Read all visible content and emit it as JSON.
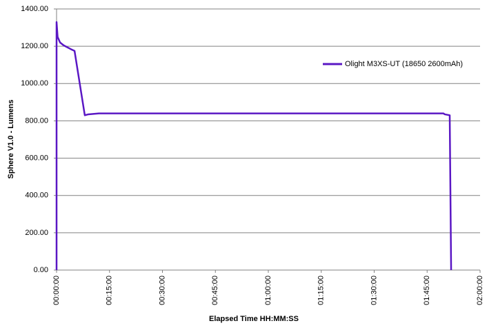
{
  "chart_data": {
    "type": "line",
    "x_label": "Elapsed Time HH:MM:SS",
    "y_label": "Sphere V1.0 - Lumens",
    "x": [
      0,
      0,
      0.3,
      1,
      2,
      3,
      4,
      5.1,
      8,
      9,
      12,
      30,
      60,
      90,
      109.6,
      110,
      111.4,
      111.8
    ],
    "series": [
      {
        "name": "Olight M3XS-UT (18650 2600mAh)",
        "color": "#5a17c4",
        "values": [
          0,
          1330,
          1250,
          1220,
          1205,
          1195,
          1185,
          1175,
          830,
          835,
          840,
          840,
          840,
          840,
          840,
          835,
          830,
          0
        ]
      }
    ],
    "xlim": [
      0,
      120
    ],
    "xticks": [
      {
        "value": 0,
        "label": "00:00:00"
      },
      {
        "value": 15,
        "label": "00:15:00"
      },
      {
        "value": 30,
        "label": "00:30:00"
      },
      {
        "value": 45,
        "label": "00:45:00"
      },
      {
        "value": 60,
        "label": "01:00:00"
      },
      {
        "value": 75,
        "label": "01:15:00"
      },
      {
        "value": 90,
        "label": "01:30:00"
      },
      {
        "value": 105,
        "label": "01:45:00"
      },
      {
        "value": 120,
        "label": "02:00:00"
      }
    ],
    "ylim": [
      0,
      1400
    ],
    "yticks": [
      {
        "value": 0,
        "label": "0.00"
      },
      {
        "value": 200,
        "label": "200.00"
      },
      {
        "value": 400,
        "label": "400.00"
      },
      {
        "value": 600,
        "label": "600.00"
      },
      {
        "value": 800,
        "label": "800.00"
      },
      {
        "value": 1000,
        "label": "1000.00"
      },
      {
        "value": 1200,
        "label": "1200.00"
      },
      {
        "value": 1400,
        "label": "1400.00"
      }
    ],
    "grid": true,
    "legend_position": "upper right"
  }
}
